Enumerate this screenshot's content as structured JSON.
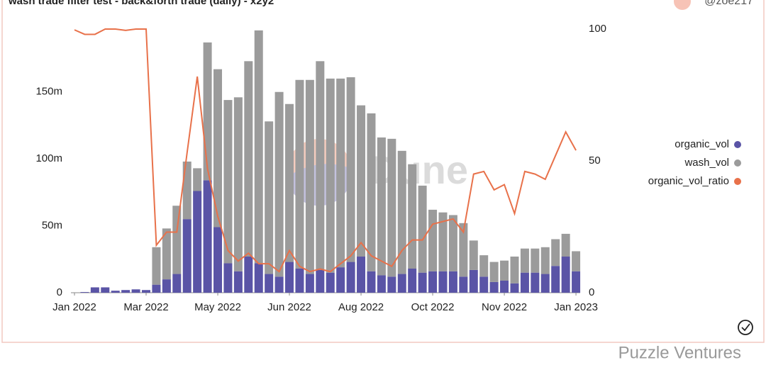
{
  "chart_data": {
    "type": "bar",
    "title": "wash trade filter test - back&forth trade (daily) - x2y2",
    "author": "@zoe217",
    "watermark": "Dune",
    "footer": "Puzzle Ventures",
    "stacked": true,
    "categories": [
      null,
      null,
      null,
      null,
      null,
      null,
      null,
      null,
      null,
      null,
      null,
      null,
      null,
      null,
      null,
      null,
      null,
      null,
      null,
      null,
      null,
      null,
      null,
      null,
      null,
      null,
      null,
      null,
      null,
      null,
      null,
      null,
      null,
      null,
      null,
      null,
      null,
      null,
      null,
      null,
      null,
      null,
      null,
      null,
      null,
      null,
      null,
      null,
      null,
      null
    ],
    "series": [
      {
        "name": "organic_vol",
        "color": "#5a54a6",
        "values": [
          0,
          0.5,
          4,
          4,
          1.5,
          2,
          2.5,
          2,
          6,
          10,
          14,
          55,
          76,
          84,
          49,
          22,
          16,
          27,
          22,
          14,
          12,
          23,
          18,
          14,
          17,
          15,
          19,
          23,
          27,
          16,
          13,
          12,
          14,
          18,
          15,
          16,
          16,
          16,
          12,
          17,
          12,
          8,
          9,
          7,
          15,
          15,
          14,
          20,
          27,
          16
        ]
      },
      {
        "name": "wash_vol",
        "color": "#9b9b9b",
        "values": [
          0,
          0,
          0,
          0,
          0,
          0,
          0,
          0,
          28,
          38,
          51,
          43,
          17,
          103,
          118,
          122,
          130,
          146,
          174,
          114,
          138,
          118,
          141,
          145,
          156,
          145,
          141,
          138,
          113,
          118,
          103,
          103,
          92,
          78,
          65,
          46,
          44,
          42,
          40,
          22,
          16,
          15,
          15,
          20,
          18,
          18,
          20,
          20,
          17,
          15
        ]
      },
      {
        "name": "organic_vol_ratio",
        "color": "#e8714a",
        "type": "line",
        "axis": "y2",
        "values": [
          99.7,
          98,
          98,
          100,
          100,
          99.5,
          100,
          100,
          18,
          23,
          23,
          53,
          82,
          47,
          29,
          16,
          12,
          15,
          11,
          11,
          8,
          16,
          10,
          8,
          9,
          8,
          11,
          14,
          19,
          14,
          12,
          10,
          16,
          20,
          20,
          26,
          27,
          28,
          23,
          45,
          46,
          39,
          41,
          30,
          46,
          45,
          43,
          52,
          61,
          54
        ]
      }
    ],
    "ylim": [
      0,
      197
    ],
    "yticks": [
      0,
      {
        "value": 50,
        "label": "50m"
      },
      {
        "value": 100,
        "label": "100m"
      },
      {
        "value": 150,
        "label": "150m"
      }
    ],
    "y2lim": [
      0,
      100
    ],
    "y2ticks": [
      0,
      50,
      100
    ],
    "xticks": [
      {
        "value": 0,
        "label": "Jan 2022"
      },
      {
        "value": 7,
        "label": "Mar 2022"
      },
      {
        "value": 14,
        "label": "May 2022"
      },
      {
        "value": 21,
        "label": "Jun 2022"
      },
      {
        "value": 28,
        "label": "Aug 2022"
      },
      {
        "value": 35,
        "label": "Oct 2022"
      },
      {
        "value": 42,
        "label": "Nov 2022"
      },
      {
        "value": 49,
        "label": "Jan 2023"
      }
    ],
    "legend": "right"
  }
}
